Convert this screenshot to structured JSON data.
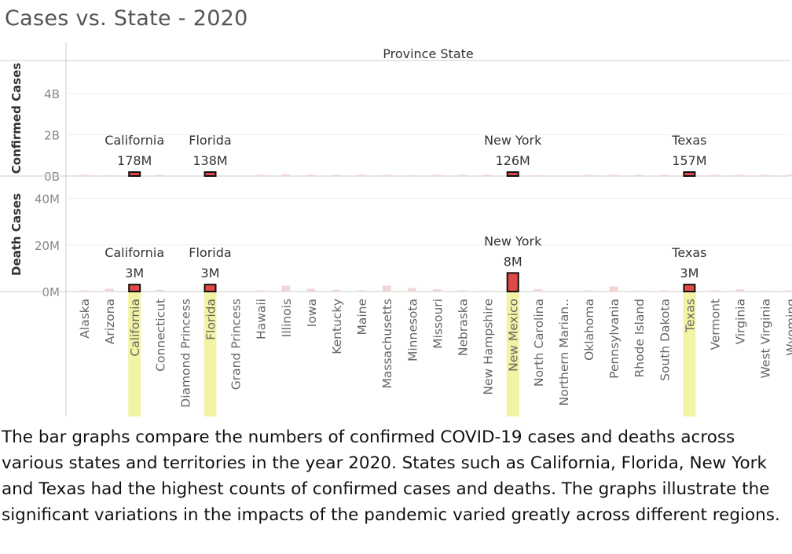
{
  "chart_data": {
    "type": "bar",
    "title": "Cases vs. State - 2020",
    "column_header": "Province State",
    "categories": [
      "Alaska",
      "Arizona",
      "California",
      "Connecticut",
      "Diamond Princess",
      "Florida",
      "Grand Princess",
      "Hawaii",
      "Illinois",
      "Iowa",
      "Kentucky",
      "Maine",
      "Massachusetts",
      "Minnesota",
      "Missouri",
      "Nebraska",
      "New Hampshire",
      "New Mexico",
      "North Carolina",
      "Northern Marian..",
      "Oklahoma",
      "Pennsylvania",
      "Rhode Island",
      "South Dakota",
      "Texas",
      "Vermont",
      "Virginia",
      "West Virginia",
      "Wyoming"
    ],
    "highlight_color": "#f3f3a5",
    "panels": [
      {
        "ylabel": "Confirmed Cases",
        "ylim": [
          0,
          5600000000
        ],
        "yticks": [
          {
            "value": 0,
            "label": "0B"
          },
          {
            "value": 2000000000,
            "label": "2B"
          },
          {
            "value": 4000000000,
            "label": "4B"
          }
        ],
        "values": [
          6000000,
          40000000,
          178000000,
          20000000,
          0,
          138000000,
          0,
          3000000,
          80000000,
          25000000,
          18000000,
          5000000,
          55000000,
          40000000,
          30000000,
          15000000,
          8000000,
          126000000,
          45000000,
          0,
          25000000,
          60000000,
          10000000,
          10000000,
          157000000,
          2000000,
          30000000,
          10000000,
          4000000
        ],
        "labels": [
          {
            "category": "California",
            "name": "California",
            "value": "178M"
          },
          {
            "category": "Florida",
            "name": "Florida",
            "value": "138M"
          },
          {
            "category": "New Mexico",
            "name": "New York",
            "value": "126M"
          },
          {
            "category": "Texas",
            "name": "Texas",
            "value": "157M"
          }
        ]
      },
      {
        "ylabel": "Death Cases",
        "ylim": [
          0,
          49000000
        ],
        "yticks": [
          {
            "value": 0,
            "label": "0M"
          },
          {
            "value": 20000000,
            "label": "20M"
          },
          {
            "value": 40000000,
            "label": "40M"
          }
        ],
        "values": [
          100000,
          1200000,
          3000000,
          800000,
          0,
          3000000,
          0,
          100000,
          2500000,
          1200000,
          800000,
          200000,
          2500000,
          1500000,
          1000000,
          300000,
          400000,
          8000000,
          1000000,
          0,
          500000,
          2200000,
          400000,
          300000,
          3000000,
          50000,
          900000,
          400000,
          100000
        ],
        "labels": [
          {
            "category": "California",
            "name": "California",
            "value": "3M"
          },
          {
            "category": "Florida",
            "name": "Florida",
            "value": "3M"
          },
          {
            "category": "New Mexico",
            "name": "New York",
            "value": "8M"
          },
          {
            "category": "Texas",
            "name": "Texas",
            "value": "3M"
          }
        ]
      }
    ],
    "colors": {
      "highlight_bar": "#e04848",
      "dim_bar": "#f2d6d6",
      "outline": "#111111",
      "grid": "#eeeeee",
      "axis_line": "#cccccc"
    }
  },
  "caption": "The bar graphs compare the numbers of confirmed COVID-19 cases and deaths across various states and territories in the year 2020. States such as California, Florida, New York and Texas had the highest counts of confirmed cases and deaths. The graphs illustrate the significant variations in the impacts of the pandemic varied greatly across different regions."
}
